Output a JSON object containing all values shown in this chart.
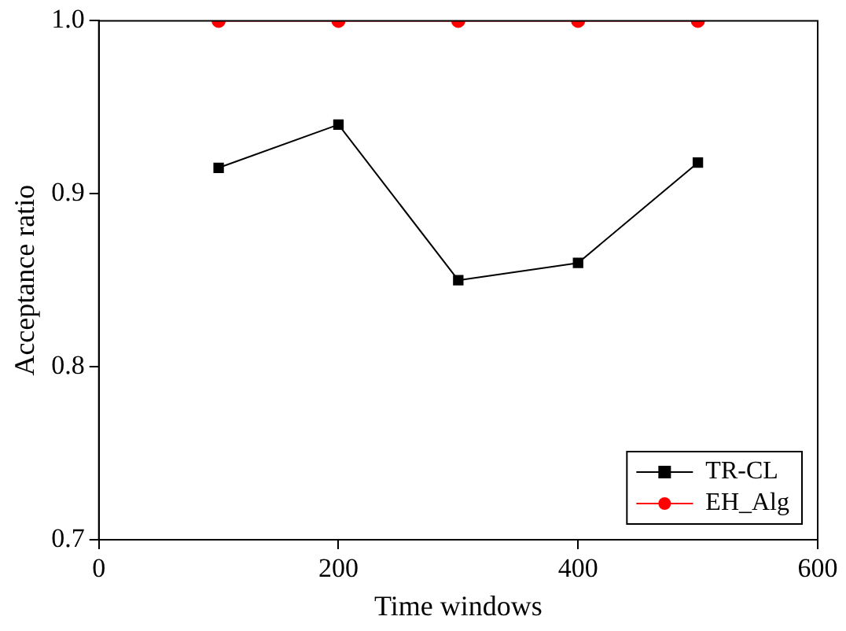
{
  "chart_data": {
    "type": "line",
    "xlabel": "Time windows",
    "ylabel": "Acceptance ratio",
    "x": [
      100,
      200,
      300,
      400,
      500
    ],
    "series": [
      {
        "name": "TR-CL",
        "color": "#000000",
        "marker": "square",
        "values": [
          0.915,
          0.94,
          0.85,
          0.86,
          0.918
        ]
      },
      {
        "name": "EH_Alg",
        "color": "#ff0000",
        "marker": "circle",
        "values": [
          1.0,
          1.0,
          1.0,
          1.0,
          1.0
        ]
      }
    ],
    "xlim": [
      0,
      600
    ],
    "xticks": [
      0,
      200,
      400,
      600
    ],
    "ylim": [
      0.7,
      1.0
    ],
    "yticks": [
      {
        "value": 0.7,
        "label": "0.7"
      },
      {
        "value": 0.8,
        "label": "0.8"
      },
      {
        "value": 0.9,
        "label": "0.9"
      },
      {
        "value": 1.0,
        "label": "1.0"
      }
    ],
    "grid": false,
    "legend": "bottom right",
    "line_style": "solid"
  }
}
